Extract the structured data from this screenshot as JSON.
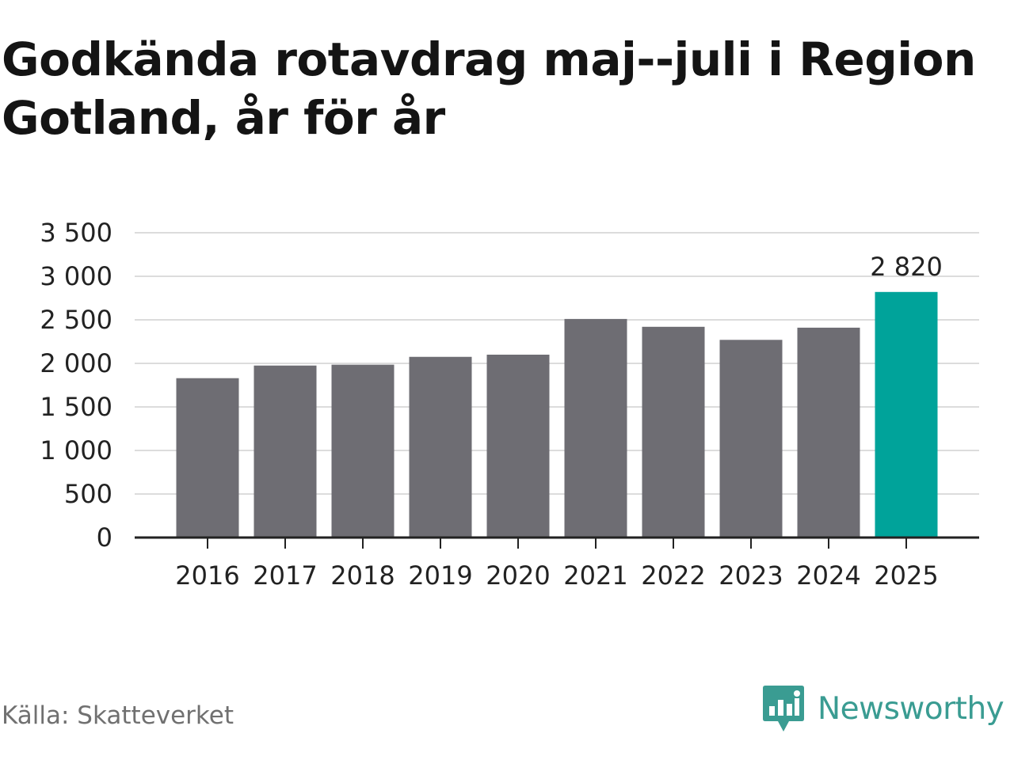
{
  "title": "Godkända rotavdrag maj--juli i Region Gotland, år för år",
  "source": "Källa: Skatteverket",
  "brand": {
    "name": "Newsworthy",
    "logo_icon": "newsworthy-logo-icon"
  },
  "colors": {
    "bar": "#6e6d73",
    "highlight": "#00a39a",
    "grid": "#dcdcdc",
    "axis": "#222222",
    "text": "#222222",
    "brand": "#3a9c92"
  },
  "chart_data": {
    "type": "bar",
    "categories": [
      "2016",
      "2017",
      "2018",
      "2019",
      "2020",
      "2021",
      "2022",
      "2023",
      "2024",
      "2025"
    ],
    "values": [
      1830,
      1975,
      1985,
      2075,
      2100,
      2510,
      2420,
      2270,
      2410,
      2820
    ],
    "highlight_index": 9,
    "data_labels": [
      {
        "index": 9,
        "text": "2 820"
      }
    ],
    "yticks": [
      0,
      500,
      1000,
      1500,
      2000,
      2500,
      3000,
      3500
    ],
    "ytick_labels": [
      "0",
      "500",
      "1 000",
      "1 500",
      "2 000",
      "2 500",
      "3 000",
      "3 500"
    ],
    "ylim": [
      0,
      3500
    ],
    "grid": true,
    "title": "Godkända rotavdrag maj--juli i Region Gotland, år för år",
    "xlabel": "",
    "ylabel": ""
  }
}
